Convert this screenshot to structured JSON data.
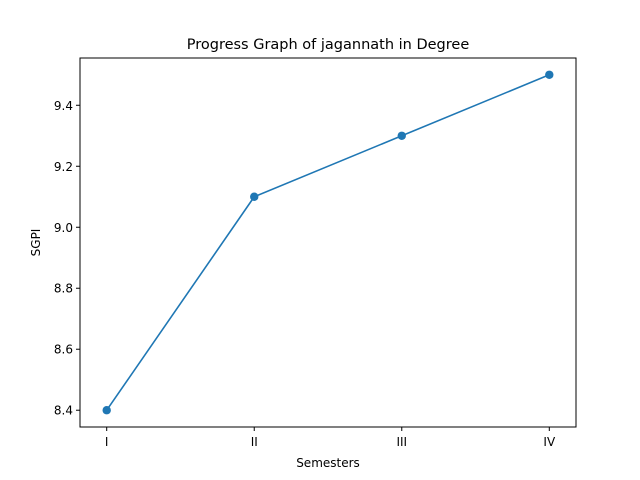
{
  "chart_data": {
    "type": "line",
    "title": "Progress Graph of jagannath in Degree",
    "xlabel": "Semesters",
    "ylabel": "SGPI",
    "categories": [
      "I",
      "II",
      "III",
      "IV"
    ],
    "series": [
      {
        "values": [
          8.4,
          9.1,
          9.3,
          9.5
        ],
        "color": "#1f77b4",
        "marker": "circle"
      }
    ],
    "ylim": [
      8.345,
      9.555
    ],
    "yticks": [
      8.4,
      8.6,
      8.8,
      9.0,
      9.2,
      9.4
    ],
    "ytick_labels": [
      "8.4",
      "8.6",
      "8.8",
      "9.0",
      "9.2",
      "9.4"
    ],
    "grid": false,
    "legend": "none"
  }
}
